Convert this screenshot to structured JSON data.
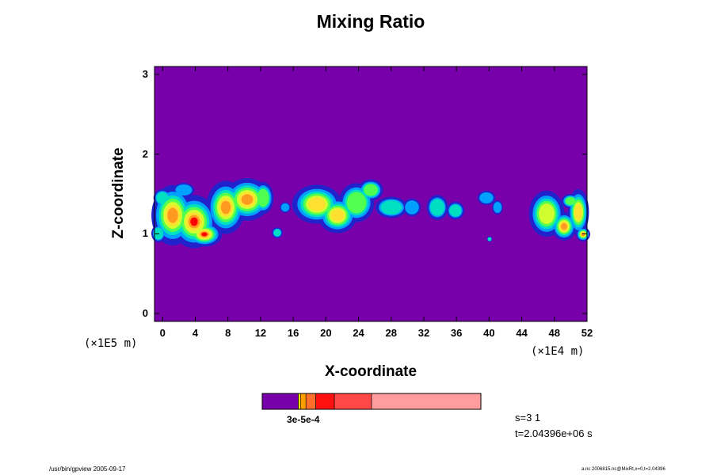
{
  "chart_data": {
    "type": "heatmap",
    "title": "Mixing Ratio",
    "xlabel": "X-coordinate",
    "ylabel": "Z-coordinate",
    "x_ticks": [
      "0",
      "4",
      "8",
      "12",
      "16",
      "20",
      "24",
      "28",
      "32",
      "36",
      "40",
      "44",
      "48",
      "52"
    ],
    "y_ticks": [
      "0",
      "1",
      "2",
      "3"
    ],
    "xlim": [
      -1,
      52
    ],
    "ylim": [
      -0.1,
      3.1
    ],
    "x_scale": "(×1E4 m)",
    "y_scale": "(×1E5 m)",
    "colorbar_label": "3e-5e-4",
    "colorbar_colors": [
      "#7700aa",
      "#f0e000",
      "#ffa000",
      "#ff6e2a",
      "#ff1010",
      "#ff4848",
      "#ff9c9c"
    ],
    "background_color": "#7700aa",
    "band_colors": [
      "#2222cc",
      "#00a0ff",
      "#00e0c0",
      "#50ff50",
      "#d0ff30",
      "#ffe030",
      "#ff9a20",
      "#ff0000"
    ]
  },
  "stats": {
    "step": "s=3 1",
    "time": "t=2.04396e+06 s"
  },
  "footer": {
    "left": "/usr/bin/gpview 2005-09-17",
    "right": "a.nc 2006815.nc@MixRt,x=0,t=2.04396"
  }
}
